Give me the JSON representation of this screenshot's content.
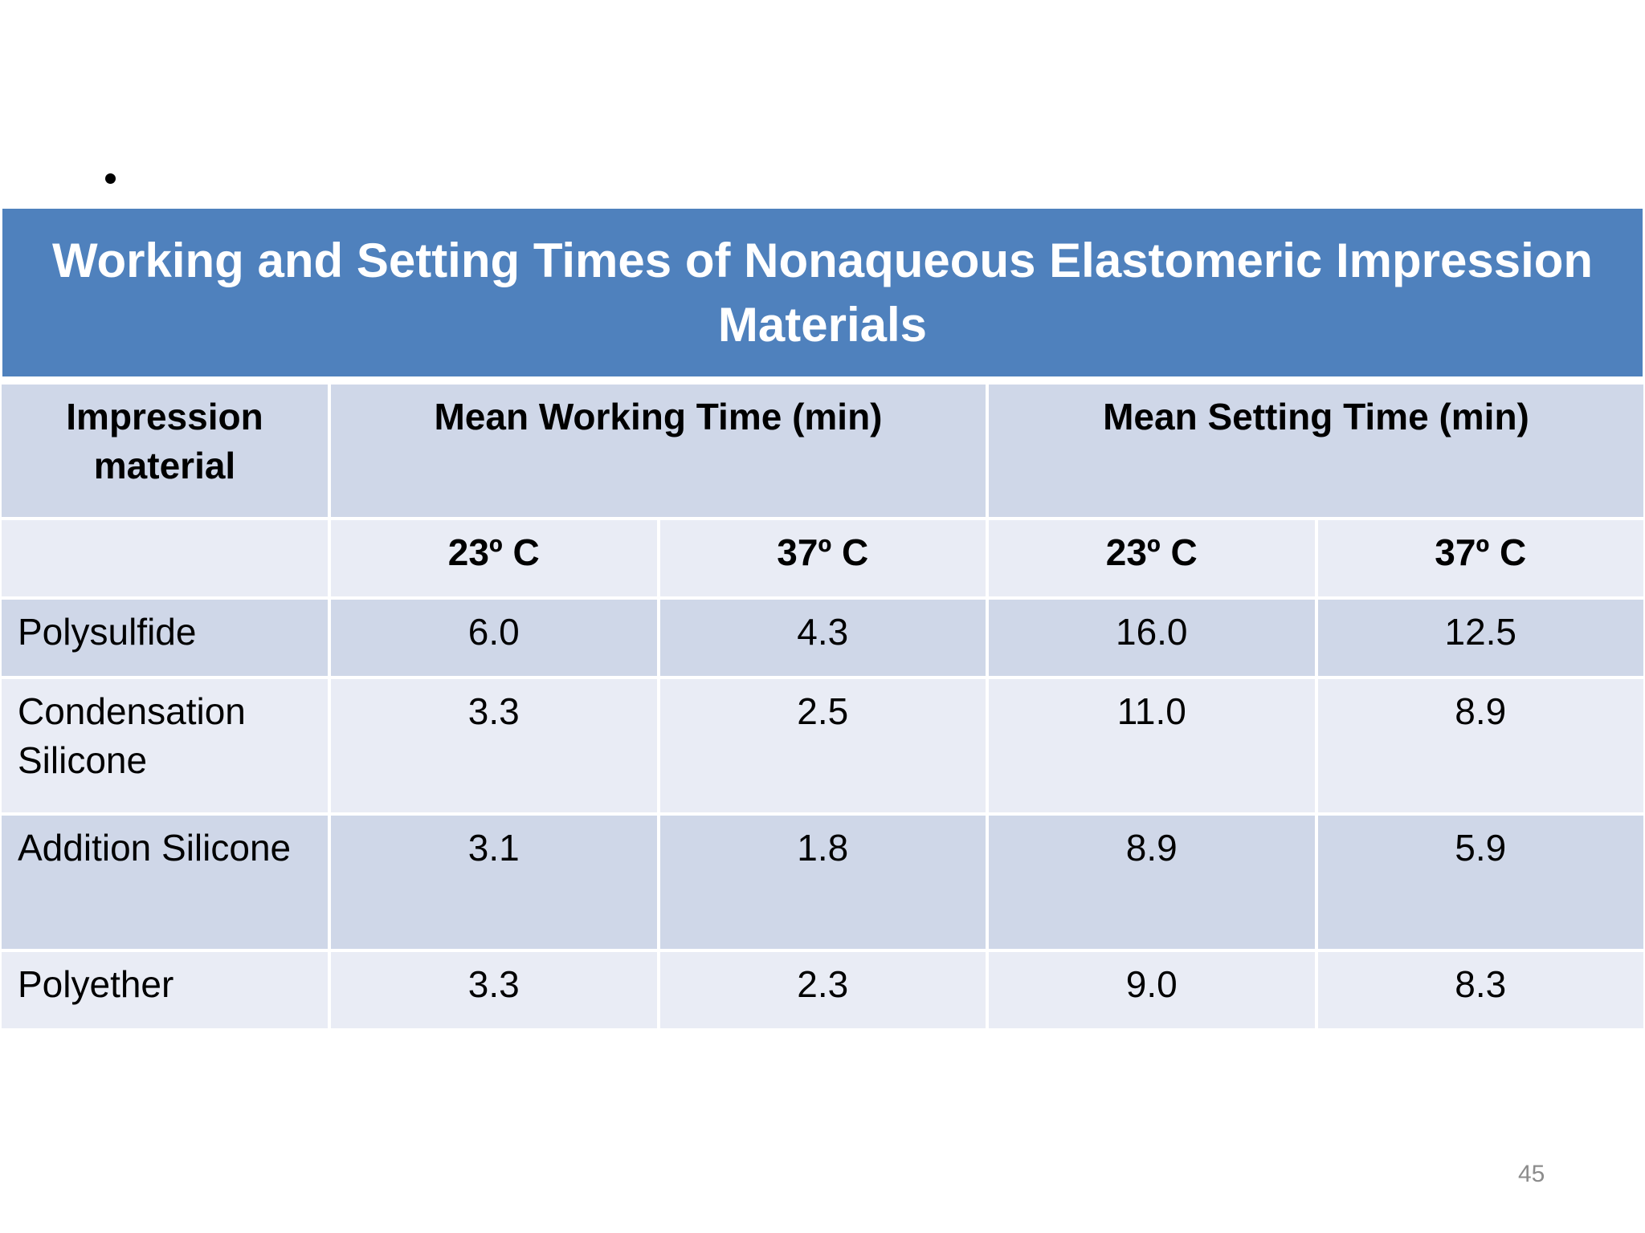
{
  "slide": {
    "title": "Working and Setting Times of Nonaqueous Elastomeric Impression Materials",
    "page_number": "45"
  },
  "table": {
    "header": {
      "material": "Impression material",
      "working": "Mean Working Time (min)",
      "setting": "Mean Setting Time (min)"
    },
    "temps": [
      "23º C",
      "37º C",
      "23º C",
      "37º C"
    ],
    "rows": [
      {
        "material": "Polysulfide",
        "values": [
          "6.0",
          "4.3",
          "16.0",
          "12.5"
        ]
      },
      {
        "material": "Condensation Silicone",
        "values": [
          "3.3",
          "2.5",
          "11.0",
          "8.9"
        ]
      },
      {
        "material": "Addition Silicone",
        "values": [
          "3.1",
          "1.8",
          "8.9",
          "5.9"
        ]
      },
      {
        "material": "Polyether",
        "values": [
          "3.3",
          "2.3",
          "9.0",
          "8.3"
        ]
      }
    ]
  },
  "colors": {
    "title_band": "#4f81bd",
    "row_dark": "#cfd7e8",
    "row_light": "#e9ecf5"
  }
}
